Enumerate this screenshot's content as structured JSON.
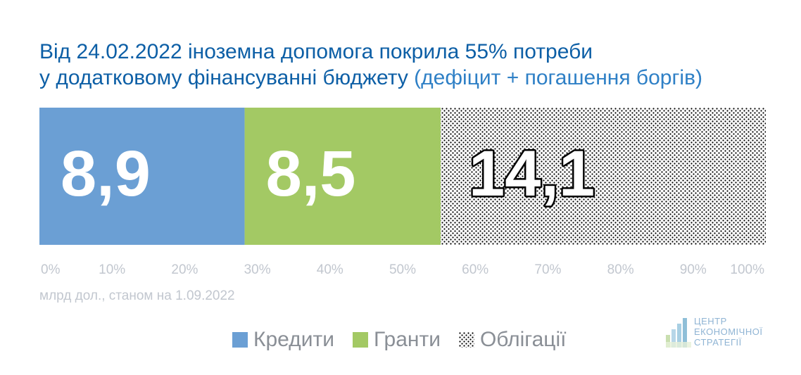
{
  "title": {
    "line1": "Від 24.02.2022 іноземна допомога покрила 55% потреби",
    "line2_main": "у додатковому фінансуванні бюджету",
    "line2_sub": "(дефіцит + погашення боргів)"
  },
  "note": "млрд дол., станом на 1.09.2022",
  "logo": {
    "line1": "ЦЕНТР",
    "line2": "ЕКОНОМІЧНОЇ",
    "line3": "СТРАТЕГІЇ"
  },
  "colors": {
    "credits": "#6b9fd4",
    "grants": "#a3c964",
    "bonds_dots": "#000000",
    "title": "#0d5fa6"
  },
  "chart_data": {
    "type": "bar",
    "orientation": "horizontal-stacked-100",
    "series": [
      {
        "name": "Кредити",
        "value": 8.9,
        "label": "8,9",
        "pattern": "solid"
      },
      {
        "name": "Гранти",
        "value": 8.5,
        "label": "8,5",
        "pattern": "solid"
      },
      {
        "name": "Облігації",
        "value": 14.1,
        "label": "14,1",
        "pattern": "dots"
      }
    ],
    "xlim": [
      0,
      100
    ],
    "x_ticks": [
      "0%",
      "10%",
      "20%",
      "30%",
      "40%",
      "50%",
      "60%",
      "70%",
      "80%",
      "90%",
      "100%"
    ],
    "grid": false,
    "legend_position": "bottom"
  }
}
